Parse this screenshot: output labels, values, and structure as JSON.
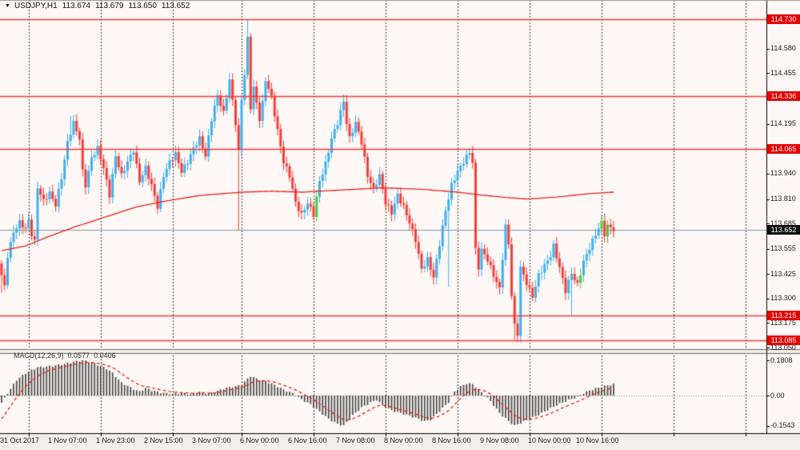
{
  "header": {
    "dropdown_icon": "▼",
    "symbol_period": "USDJPY,H1",
    "open": "113.674",
    "high": "113.679",
    "low": "113.650",
    "close": "113.652"
  },
  "colors": {
    "background": "#fdf8f6",
    "date_strip": "#f2eeec",
    "bull_candle": "#3fb0ee",
    "bear_candle": "#fb3b36",
    "doji_candle": "#3ecb3e",
    "ma_line": "#ea2218",
    "level_line": "#f43b38",
    "bid_line": "#8694a6",
    "macd_histogram": "#4d4d4d",
    "macd_signal": "#ea2218",
    "badge_red": "#e60000",
    "badge_black": "#0a0a0a",
    "grid_dash": "#3c3c3c",
    "axis_text": "#1c1c1c"
  },
  "chart_data": [
    {
      "id": "price_panel",
      "type": "candlestick",
      "symbol": "USDJPY",
      "timeframe": "H1",
      "ohlc_current": {
        "open": 113.674,
        "high": 113.679,
        "low": 113.65,
        "close": 113.652
      },
      "ylim": [
        113.02,
        114.77
      ],
      "bars_total": 205,
      "grid": "daily-dashed-vertical",
      "x_axis": {
        "labels": [
          {
            "bar": 0,
            "text": "31 Oct 2017"
          },
          {
            "bar": 16,
            "text": "1 Nov 07:00"
          },
          {
            "bar": 32,
            "text": "1 Nov 23:00"
          },
          {
            "bar": 48,
            "text": "2 Nov 15:00"
          },
          {
            "bar": 64,
            "text": "3 Nov 07:00"
          },
          {
            "bar": 80,
            "text": "6 Nov 00:00"
          },
          {
            "bar": 96,
            "text": "6 Nov 16:00"
          },
          {
            "bar": 112,
            "text": "7 Nov 08:00"
          },
          {
            "bar": 128,
            "text": "8 Nov 00:00"
          },
          {
            "bar": 144,
            "text": "8 Nov 16:00"
          },
          {
            "bar": 160,
            "text": "9 Nov 08:00"
          },
          {
            "bar": 176,
            "text": "10 Nov 00:00"
          },
          {
            "bar": 192,
            "text": "10 Nov 16:00"
          }
        ]
      },
      "price_axis": {
        "ticks": [
          {
            "value": 114.58,
            "text": "114.580"
          },
          {
            "value": 114.455,
            "text": "114.455"
          },
          {
            "value": 114.195,
            "text": "114.195"
          },
          {
            "value": 113.94,
            "text": "113.940"
          },
          {
            "value": 113.81,
            "text": "113.810"
          },
          {
            "value": 113.685,
            "text": "113.685"
          },
          {
            "value": 113.555,
            "text": "113.555"
          },
          {
            "value": 113.425,
            "text": "113.425"
          },
          {
            "value": 113.3,
            "text": "113.300"
          },
          {
            "value": 113.175,
            "text": "113.175"
          },
          {
            "value": 113.05,
            "text": "113.050"
          }
        ]
      },
      "level_lines": [
        {
          "value": 114.73,
          "text": "114.730"
        },
        {
          "value": 114.336,
          "text": "114.336"
        },
        {
          "value": 114.065,
          "text": "114.065"
        },
        {
          "value": 113.215,
          "text": "113.215"
        },
        {
          "value": 113.085,
          "text": "113.085"
        }
      ],
      "bid_line": {
        "value": 113.652,
        "text": "113.652"
      },
      "day_separator_bars": [
        9,
        33,
        57,
        80,
        104,
        128,
        152,
        176,
        200,
        224,
        248
      ],
      "close_keyframes": [
        [
          0,
          113.42
        ],
        [
          1,
          113.36
        ],
        [
          2,
          113.52
        ],
        [
          4,
          113.64
        ],
        [
          6,
          113.69
        ],
        [
          8,
          113.66
        ],
        [
          9,
          113.7
        ],
        [
          10,
          113.63
        ],
        [
          11,
          113.59
        ],
        [
          12,
          113.87
        ],
        [
          14,
          113.8
        ],
        [
          16,
          113.84
        ],
        [
          18,
          113.78
        ],
        [
          20,
          113.92
        ],
        [
          22,
          114.1
        ],
        [
          24,
          114.2
        ],
        [
          26,
          114.12
        ],
        [
          27,
          113.95
        ],
        [
          28,
          113.88
        ],
        [
          30,
          114.02
        ],
        [
          32,
          114.07
        ],
        [
          34,
          113.97
        ],
        [
          36,
          113.83
        ],
        [
          38,
          114.03
        ],
        [
          40,
          113.93
        ],
        [
          42,
          114.0
        ],
        [
          44,
          114.06
        ],
        [
          46,
          113.9
        ],
        [
          48,
          113.97
        ],
        [
          50,
          113.88
        ],
        [
          52,
          113.77
        ],
        [
          54,
          113.93
        ],
        [
          56,
          114.0
        ],
        [
          58,
          114.04
        ],
        [
          60,
          113.95
        ],
        [
          62,
          114.0
        ],
        [
          64,
          114.07
        ],
        [
          66,
          114.12
        ],
        [
          68,
          114.03
        ],
        [
          70,
          114.22
        ],
        [
          72,
          114.34
        ],
        [
          74,
          114.25
        ],
        [
          76,
          114.42
        ],
        [
          78,
          114.2
        ],
        [
          79,
          114.05
        ],
        [
          80,
          114.32
        ],
        [
          81,
          114.45
        ],
        [
          82,
          114.63
        ],
        [
          83,
          114.28
        ],
        [
          84,
          114.38
        ],
        [
          85,
          114.3
        ],
        [
          86,
          114.22
        ],
        [
          87,
          114.3
        ],
        [
          88,
          114.42
        ],
        [
          90,
          114.33
        ],
        [
          92,
          114.16
        ],
        [
          94,
          114.0
        ],
        [
          96,
          113.93
        ],
        [
          98,
          113.79
        ],
        [
          100,
          113.73
        ],
        [
          102,
          113.79
        ],
        [
          104,
          113.73
        ],
        [
          106,
          113.9
        ],
        [
          108,
          113.99
        ],
        [
          110,
          114.12
        ],
        [
          112,
          114.2
        ],
        [
          114,
          114.31
        ],
        [
          115,
          114.2
        ],
        [
          116,
          114.12
        ],
        [
          118,
          114.2
        ],
        [
          120,
          114.1
        ],
        [
          122,
          113.93
        ],
        [
          124,
          113.86
        ],
        [
          126,
          113.93
        ],
        [
          128,
          113.79
        ],
        [
          130,
          113.74
        ],
        [
          132,
          113.83
        ],
        [
          134,
          113.77
        ],
        [
          136,
          113.69
        ],
        [
          138,
          113.6
        ],
        [
          140,
          113.45
        ],
        [
          142,
          113.5
        ],
        [
          144,
          113.41
        ],
        [
          146,
          113.58
        ],
        [
          148,
          113.75
        ],
        [
          150,
          113.88
        ],
        [
          152,
          113.95
        ],
        [
          154,
          114.0
        ],
        [
          156,
          114.05
        ],
        [
          157,
          114.0
        ],
        [
          158,
          113.55
        ],
        [
          159,
          113.46
        ],
        [
          160,
          113.55
        ],
        [
          162,
          113.5
        ],
        [
          164,
          113.42
        ],
        [
          166,
          113.35
        ],
        [
          168,
          113.67
        ],
        [
          169,
          113.58
        ],
        [
          170,
          113.32
        ],
        [
          171,
          113.16
        ],
        [
          172,
          113.12
        ],
        [
          173,
          113.46
        ],
        [
          175,
          113.38
        ],
        [
          177,
          113.31
        ],
        [
          179,
          113.42
        ],
        [
          181,
          113.47
        ],
        [
          183,
          113.52
        ],
        [
          184,
          113.57
        ],
        [
          186,
          113.46
        ],
        [
          188,
          113.34
        ],
        [
          190,
          113.43
        ],
        [
          192,
          113.37
        ],
        [
          194,
          113.49
        ],
        [
          196,
          113.56
        ],
        [
          198,
          113.63
        ],
        [
          200,
          113.69
        ],
        [
          201,
          113.63
        ],
        [
          202,
          113.67
        ],
        [
          203,
          113.665
        ],
        [
          204,
          113.652
        ]
      ],
      "wick_spikes": [
        {
          "bar": 0,
          "low": 113.33
        },
        {
          "bar": 23,
          "high": 114.235
        },
        {
          "bar": 52,
          "low": 113.745
        },
        {
          "bar": 79,
          "low": 113.65
        },
        {
          "bar": 82,
          "high": 114.73
        },
        {
          "bar": 114,
          "high": 114.345
        },
        {
          "bar": 149,
          "low": 113.36
        },
        {
          "bar": 171,
          "low": 113.09
        },
        {
          "bar": 172,
          "low": 113.085
        },
        {
          "bar": 190,
          "low": 113.215
        }
      ],
      "doji_bars": [
        105,
        193,
        200,
        202
      ],
      "ma": {
        "points": [
          [
            0,
            113.545
          ],
          [
            8,
            113.57
          ],
          [
            16,
            113.62
          ],
          [
            24,
            113.665
          ],
          [
            33,
            113.71
          ],
          [
            45,
            113.77
          ],
          [
            55,
            113.8
          ],
          [
            66,
            113.828
          ],
          [
            80,
            113.845
          ],
          [
            90,
            113.85
          ],
          [
            100,
            113.845
          ],
          [
            112,
            113.855
          ],
          [
            127,
            113.867
          ],
          [
            140,
            113.86
          ],
          [
            152,
            113.845
          ],
          [
            160,
            113.83
          ],
          [
            168,
            113.818
          ],
          [
            175,
            113.81
          ],
          [
            185,
            113.82
          ],
          [
            195,
            113.836
          ],
          [
            204,
            113.845
          ]
        ]
      }
    },
    {
      "id": "macd_panel",
      "type": "bar",
      "name": "MACD(12,26,9)",
      "macd_value_text": "0.0577",
      "signal_value_text": "0.0406",
      "ylim": [
        -0.193,
        0.226
      ],
      "y_axis": {
        "ticks": [
          {
            "value": 0.1808,
            "text": "0.1808"
          },
          {
            "value": 0,
            "text": "0.00"
          },
          {
            "value": -0.1543,
            "text": "-0.1543"
          }
        ]
      },
      "histogram_keyframes": [
        [
          0,
          -0.037
        ],
        [
          2,
          0.012
        ],
        [
          5,
          0.08
        ],
        [
          8,
          0.115
        ],
        [
          12,
          0.145
        ],
        [
          17,
          0.152
        ],
        [
          21,
          0.162
        ],
        [
          24,
          0.173
        ],
        [
          27,
          0.1808
        ],
        [
          31,
          0.164
        ],
        [
          35,
          0.138
        ],
        [
          37,
          0.115
        ],
        [
          40,
          0.066
        ],
        [
          44,
          0.033
        ],
        [
          46,
          0.02
        ],
        [
          48,
          0.038
        ],
        [
          50,
          0.027
        ],
        [
          53,
          0.015
        ],
        [
          57,
          0.008
        ],
        [
          60,
          0.013
        ],
        [
          63,
          0.006
        ],
        [
          66,
          0.018
        ],
        [
          69,
          0.009
        ],
        [
          72,
          0.024
        ],
        [
          75,
          0.04
        ],
        [
          78,
          0.047
        ],
        [
          80,
          0.056
        ],
        [
          83,
          0.1
        ],
        [
          85,
          0.086
        ],
        [
          88,
          0.074
        ],
        [
          91,
          0.054
        ],
        [
          94,
          0.03
        ],
        [
          97,
          0.012
        ],
        [
          100,
          -0.02
        ],
        [
          103,
          -0.046
        ],
        [
          106,
          -0.082
        ],
        [
          109,
          -0.12
        ],
        [
          112,
          -0.146
        ],
        [
          114,
          -0.1543
        ],
        [
          117,
          -0.102
        ],
        [
          120,
          -0.062
        ],
        [
          123,
          -0.036
        ],
        [
          125,
          -0.022
        ],
        [
          127,
          -0.05
        ],
        [
          130,
          -0.076
        ],
        [
          133,
          -0.09
        ],
        [
          136,
          -0.104
        ],
        [
          139,
          -0.12
        ],
        [
          141,
          -0.133
        ],
        [
          143,
          -0.124
        ],
        [
          146,
          -0.08
        ],
        [
          149,
          -0.034
        ],
        [
          151,
          0.02
        ],
        [
          153,
          0.046
        ],
        [
          155,
          0.062
        ],
        [
          157,
          0.058
        ],
        [
          159,
          0.03
        ],
        [
          161,
          0.004
        ],
        [
          163,
          -0.03
        ],
        [
          166,
          -0.09
        ],
        [
          169,
          -0.131
        ],
        [
          171,
          -0.1543
        ],
        [
          173,
          -0.141
        ],
        [
          176,
          -0.12
        ],
        [
          179,
          -0.099
        ],
        [
          182,
          -0.074
        ],
        [
          185,
          -0.049
        ],
        [
          188,
          -0.029
        ],
        [
          190,
          -0.017
        ],
        [
          192,
          -0.007
        ],
        [
          194,
          0.012
        ],
        [
          196,
          0.026
        ],
        [
          198,
          0.036
        ],
        [
          200,
          0.045
        ],
        [
          202,
          0.052
        ],
        [
          204,
          0.0577
        ]
      ],
      "signal": {
        "method": "ema",
        "period": 9,
        "seed": -0.12
      }
    }
  ]
}
